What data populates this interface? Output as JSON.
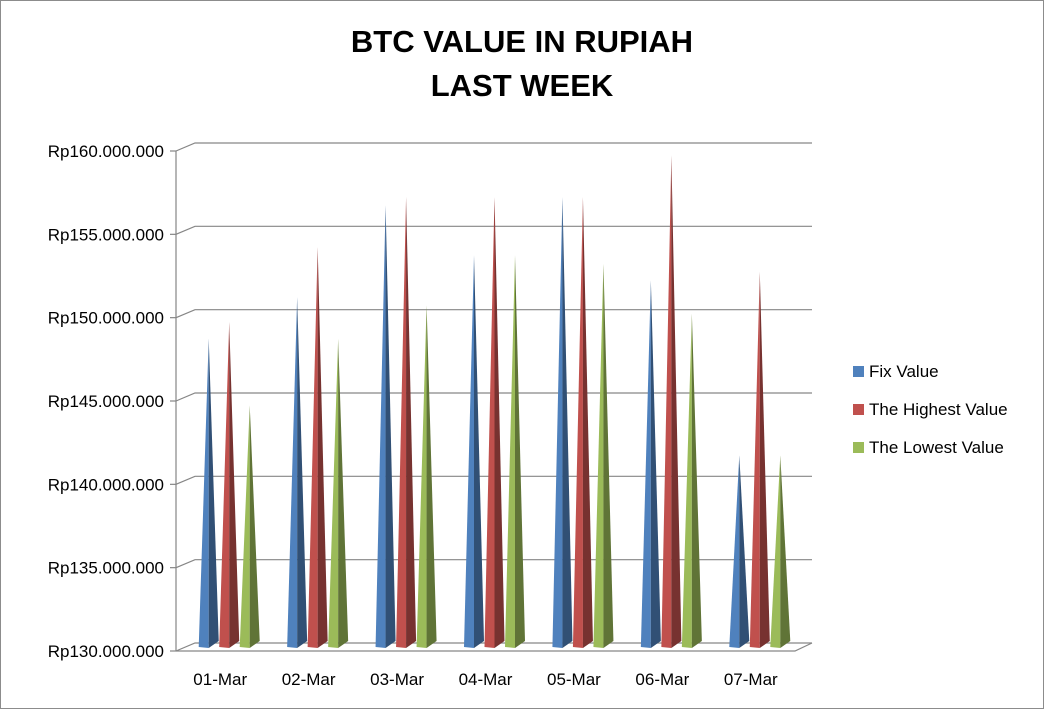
{
  "chart_data": {
    "type": "bar",
    "style": "3d-cone",
    "title": [
      "BTC VALUE IN RUPIAH",
      "LAST WEEK"
    ],
    "xlabel": "",
    "ylabel": "",
    "categories": [
      "01-Mar",
      "02-Mar",
      "03-Mar",
      "04-Mar",
      "05-Mar",
      "06-Mar",
      "07-Mar"
    ],
    "yticks": [
      130000000,
      135000000,
      140000000,
      145000000,
      150000000,
      155000000,
      160000000
    ],
    "ytick_labels": [
      "Rp130.000.000",
      "Rp135.000.000",
      "Rp140.000.000",
      "Rp145.000.000",
      "Rp150.000.000",
      "Rp155.000.000",
      "Rp160.000.000"
    ],
    "ylim": [
      130000000,
      160000000
    ],
    "grid": true,
    "legend_position": "right",
    "series": [
      {
        "name": "Fix Value",
        "color": "#4f81bd",
        "values": [
          148500000,
          151000000,
          156500000,
          153500000,
          157000000,
          152000000,
          141500000
        ]
      },
      {
        "name": "The Highest Value",
        "color": "#c0504d",
        "values": [
          149500000,
          154000000,
          157000000,
          157000000,
          157000000,
          159500000,
          152500000
        ]
      },
      {
        "name": "The Lowest Value",
        "color": "#9bbb59",
        "values": [
          144500000,
          148500000,
          150500000,
          153500000,
          153000000,
          150000000,
          141500000
        ]
      }
    ]
  }
}
